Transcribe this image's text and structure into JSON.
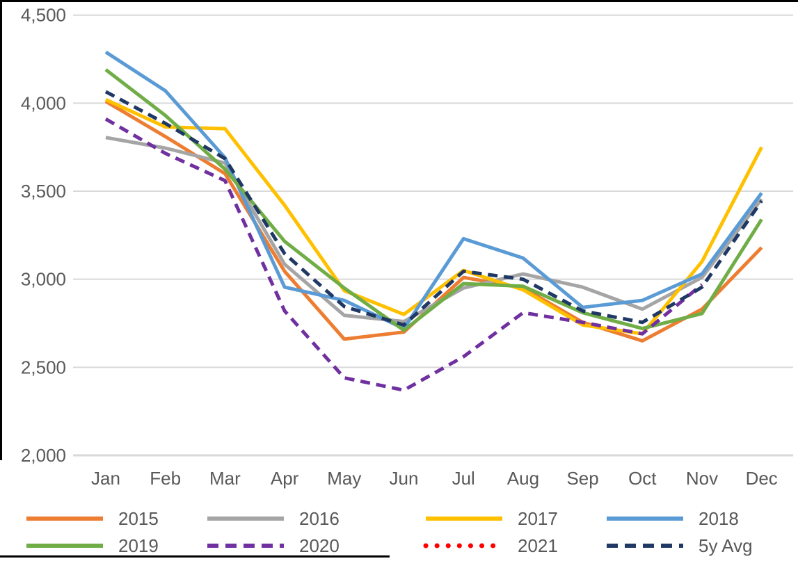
{
  "chart_data": {
    "type": "line",
    "title": "",
    "xlabel": "",
    "ylabel": "",
    "categories": [
      "Jan",
      "Feb",
      "Mar",
      "Apr",
      "May",
      "Jun",
      "Jul",
      "Aug",
      "Sep",
      "Oct",
      "Nov",
      "Dec"
    ],
    "y_axis": {
      "min": 2000,
      "max": 4500,
      "step": 500,
      "tick_labels": [
        "4,500",
        "4,000",
        "3,500",
        "3,000",
        "2,500",
        "2,000"
      ]
    },
    "grid": true,
    "legend_position": "bottom",
    "colors": {
      "gridline": "#d9d9d9",
      "axis_text": "#595959",
      "frame_border": "#000000"
    },
    "series": [
      {
        "name": "2015",
        "color": "#ED7D31",
        "style": "solid",
        "values": [
          4010,
          3810,
          3600,
          3045,
          2660,
          2700,
          3010,
          2950,
          2755,
          2650,
          2830,
          3180
        ]
      },
      {
        "name": "2016",
        "color": "#A5A5A5",
        "style": "solid",
        "values": [
          3805,
          3745,
          3660,
          3085,
          2795,
          2760,
          2950,
          3030,
          2955,
          2830,
          3010,
          3455
        ]
      },
      {
        "name": "2017",
        "color": "#FFC000",
        "style": "solid",
        "values": [
          4020,
          3865,
          3855,
          3420,
          2935,
          2800,
          3050,
          2940,
          2740,
          2690,
          3100,
          3750
        ]
      },
      {
        "name": "2018",
        "color": "#5B9BD5",
        "style": "solid",
        "values": [
          4290,
          4070,
          3690,
          2955,
          2880,
          2720,
          3230,
          3120,
          2840,
          2880,
          3030,
          3490
        ]
      },
      {
        "name": "2019",
        "color": "#70AD47",
        "style": "solid",
        "values": [
          4190,
          3930,
          3625,
          3215,
          2950,
          2710,
          2975,
          2960,
          2810,
          2720,
          2805,
          3340
        ]
      },
      {
        "name": "2020",
        "color": "#7030A0",
        "style": "dashed",
        "values": [
          3910,
          3715,
          3560,
          2820,
          2440,
          2370,
          2560,
          2810,
          2755,
          2690,
          2970,
          null
        ]
      },
      {
        "name": "2021",
        "color": "#FF0000",
        "style": "dotted",
        "values": [
          null,
          null,
          null,
          null,
          null,
          null,
          null,
          null,
          null,
          null,
          null,
          null
        ]
      },
      {
        "name": "5y Avg",
        "color": "#1F3864",
        "style": "dashed",
        "values": [
          4065,
          3885,
          3685,
          3145,
          2845,
          2740,
          3045,
          3000,
          2820,
          2755,
          2955,
          3445
        ]
      }
    ],
    "legend": {
      "rows": [
        [
          "2015",
          "2016",
          "2017",
          "2018"
        ],
        [
          "2019",
          "2020",
          "2021",
          "5y Avg"
        ]
      ]
    }
  }
}
